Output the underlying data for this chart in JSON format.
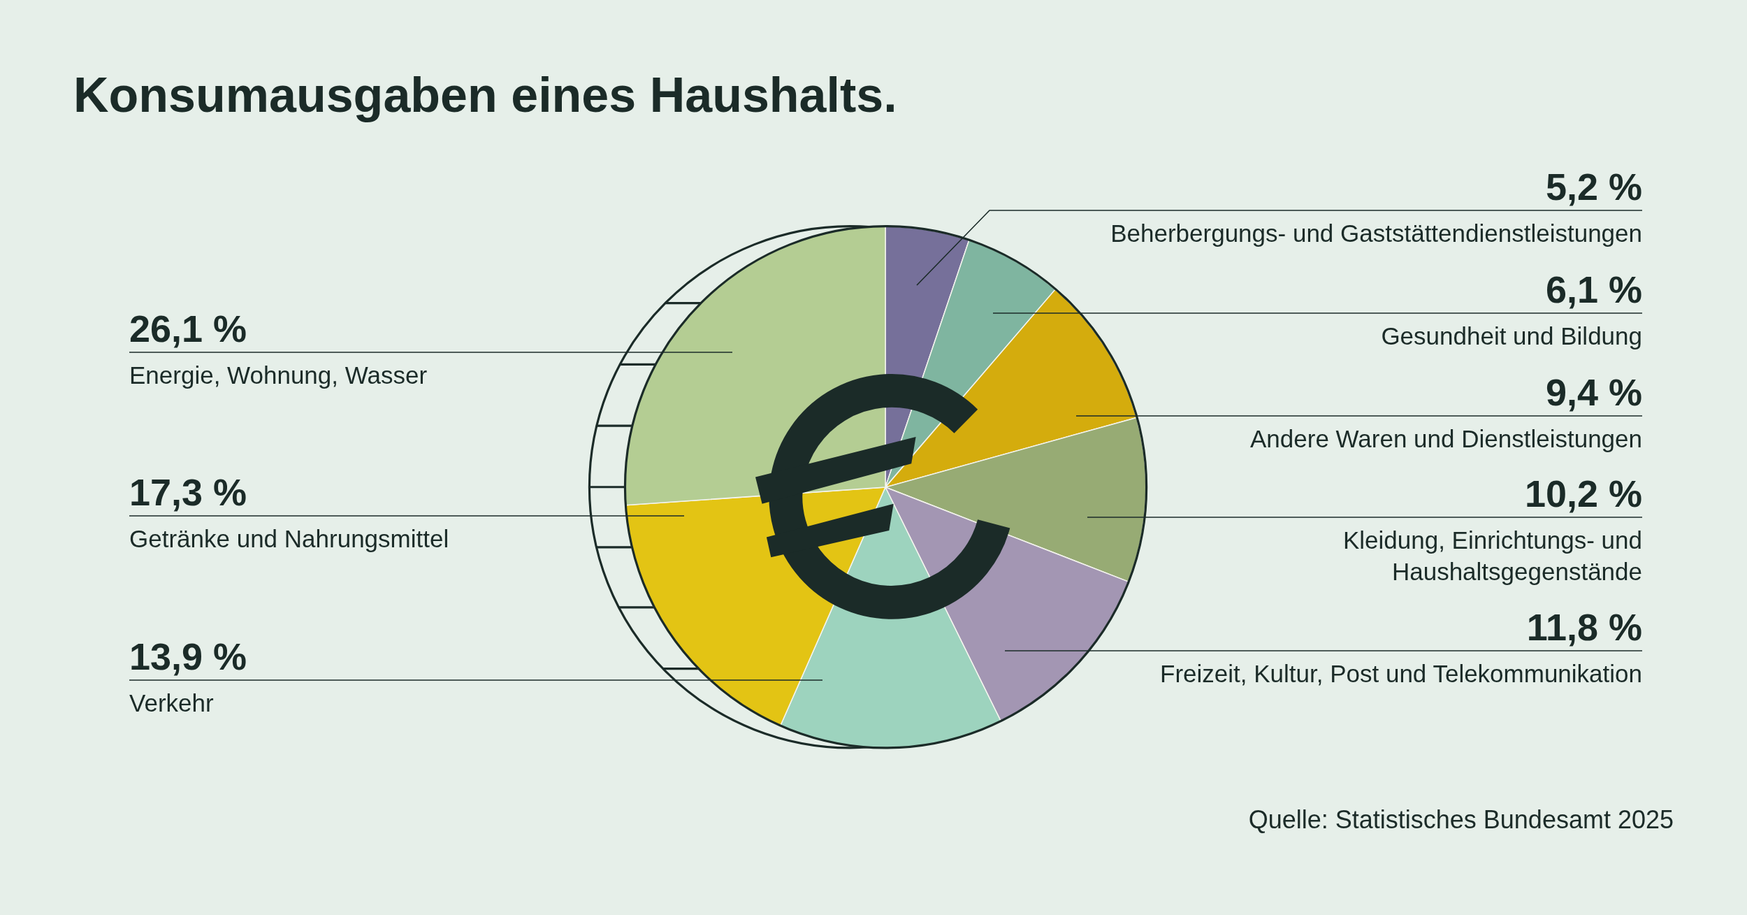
{
  "chart_data": {
    "type": "pie",
    "title": "Konsumausgaben eines Haushalts.",
    "categories": [
      "Beherbergungs- und Gaststättendienstleistungen",
      "Gesundheit und Bildung",
      "Andere Waren und Dienstleistungen",
      "Kleidung, Einrichtungs- und\nHaushaltsgegenstände",
      "Freizeit, Kultur, Post und Telekommunikation",
      "Verkehr",
      "Getränke und Nahrungsmittel",
      "Energie, Wohnung, Wasser"
    ],
    "values": [
      5.2,
      6.1,
      9.4,
      10.2,
      11.8,
      13.9,
      17.3,
      26.1
    ],
    "colors": [
      "#76709a",
      "#7fb5a0",
      "#d4ac0d",
      "#97ab74",
      "#a396b3",
      "#9dd3be",
      "#e3c414",
      "#b4cd93"
    ],
    "value_labels": [
      "5,2 %",
      "6,1 %",
      "9,4 %",
      "10,2 %",
      "11,8 %",
      "13,9 %",
      "17,3 %",
      "26,1 %"
    ],
    "annotations": [
      "Quelle: Statistisches Bundesamt 2025"
    ]
  }
}
